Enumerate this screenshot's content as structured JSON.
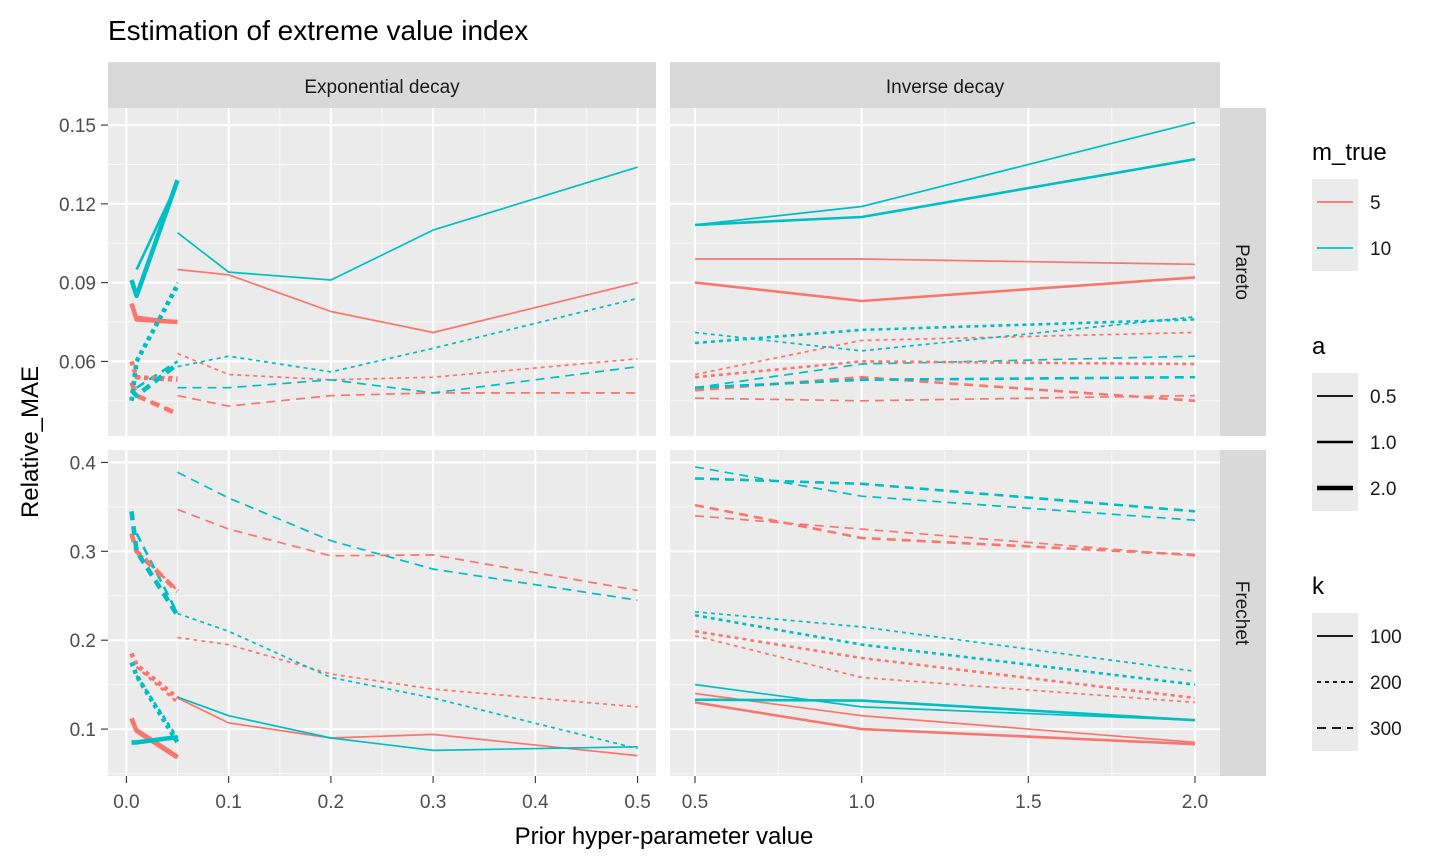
{
  "chart_data": {
    "type": "line",
    "title": "Estimation of extreme value index",
    "xlabel": "Prior hyper-parameter value",
    "ylabel": "Relative_MAE",
    "colors": {
      "5": "#F8766D",
      "10": "#00BFC4"
    },
    "columns": [
      "Exponential decay",
      "Inverse decay"
    ],
    "rows": [
      "Pareto",
      "Frechet"
    ],
    "x_axes": {
      "Exponential decay": {
        "xlim": [
          -0.018,
          0.518
        ],
        "ticks": [
          0.0,
          0.1,
          0.2,
          0.3,
          0.4,
          0.5
        ],
        "tick_labels": [
          "0.0",
          "0.1",
          "0.2",
          "0.3",
          "0.4",
          "0.5"
        ]
      },
      "Inverse decay": {
        "xlim": [
          0.425,
          2.075
        ],
        "ticks": [
          0.5,
          1.0,
          1.5,
          2.0
        ],
        "tick_labels": [
          "0.5",
          "1.0",
          "1.5",
          "2.0"
        ]
      }
    },
    "y_axes": {
      "Pareto": {
        "ylim": [
          0.0316,
          0.1565
        ],
        "ticks": [
          0.06,
          0.09,
          0.12,
          0.15
        ],
        "tick_labels": [
          "0.06",
          "0.09",
          "0.12",
          "0.15"
        ]
      },
      "Frechet": {
        "ylim": [
          0.0472,
          0.414
        ],
        "ticks": [
          0.1,
          0.2,
          0.3,
          0.4
        ],
        "tick_labels": [
          "0.1",
          "0.2",
          "0.3",
          "0.4"
        ]
      }
    },
    "x_values": {
      "Exponential decay": {
        "0.5": [
          0.05,
          0.1,
          0.2,
          0.3,
          0.5
        ],
        "1.0": [
          0.01,
          0.05
        ],
        "2.0": [
          0.005,
          0.01,
          0.05
        ]
      },
      "Inverse decay": {
        "0.5": [
          0.5,
          1.0,
          2.0
        ],
        "1.0": [
          0.5,
          1.0,
          2.0
        ],
        "2.0": [
          0.5,
          1.0,
          2.0
        ]
      }
    },
    "legends": {
      "m_true": {
        "title": "m_true",
        "entries": [
          "5",
          "10"
        ]
      },
      "a": {
        "title": "a",
        "entries": [
          "0.5",
          "1.0",
          "2.0"
        ]
      },
      "k": {
        "title": "k",
        "entries": [
          "100",
          "200",
          "300"
        ]
      }
    },
    "series": [
      {
        "panel": "Exponential decay|Pareto",
        "m_true": "5",
        "a": "0.5",
        "k": "100",
        "values": [
          0.095,
          0.093,
          0.079,
          0.071,
          0.09
        ]
      },
      {
        "panel": "Exponential decay|Pareto",
        "m_true": "5",
        "a": "0.5",
        "k": "200",
        "values": [
          0.063,
          0.055,
          0.053,
          0.054,
          0.061
        ]
      },
      {
        "panel": "Exponential decay|Pareto",
        "m_true": "5",
        "a": "0.5",
        "k": "300",
        "values": [
          0.047,
          0.043,
          0.047,
          0.048,
          0.048
        ]
      },
      {
        "panel": "Exponential decay|Pareto",
        "m_true": "10",
        "a": "0.5",
        "k": "100",
        "values": [
          0.109,
          0.094,
          0.091,
          0.11,
          0.134
        ]
      },
      {
        "panel": "Exponential decay|Pareto",
        "m_true": "10",
        "a": "0.5",
        "k": "200",
        "values": [
          0.058,
          0.062,
          0.056,
          0.065,
          0.084
        ]
      },
      {
        "panel": "Exponential decay|Pareto",
        "m_true": "10",
        "a": "0.5",
        "k": "300",
        "values": [
          0.05,
          0.05,
          0.053,
          0.048,
          0.058
        ]
      },
      {
        "panel": "Exponential decay|Pareto",
        "m_true": "5",
        "a": "1.0",
        "k": "100",
        "values": [
          0.077,
          0.075
        ]
      },
      {
        "panel": "Exponential decay|Pareto",
        "m_true": "5",
        "a": "1.0",
        "k": "200",
        "values": [
          0.054,
          0.054
        ]
      },
      {
        "panel": "Exponential decay|Pareto",
        "m_true": "5",
        "a": "1.0",
        "k": "300",
        "values": [
          0.047,
          0.04
        ]
      },
      {
        "panel": "Exponential decay|Pareto",
        "m_true": "10",
        "a": "1.0",
        "k": "100",
        "values": [
          0.095,
          0.128
        ]
      },
      {
        "panel": "Exponential decay|Pareto",
        "m_true": "10",
        "a": "1.0",
        "k": "200",
        "values": [
          0.06,
          0.09
        ]
      },
      {
        "panel": "Exponential decay|Pareto",
        "m_true": "10",
        "a": "1.0",
        "k": "300",
        "values": [
          0.05,
          0.06
        ]
      },
      {
        "panel": "Exponential decay|Pareto",
        "m_true": "5",
        "a": "2.0",
        "k": "100",
        "values": [
          0.082,
          0.076,
          0.075
        ]
      },
      {
        "panel": "Exponential decay|Pareto",
        "m_true": "5",
        "a": "2.0",
        "k": "200",
        "values": [
          0.06,
          0.054,
          0.053
        ]
      },
      {
        "panel": "Exponential decay|Pareto",
        "m_true": "5",
        "a": "2.0",
        "k": "300",
        "values": [
          0.052,
          0.047,
          0.04
        ]
      },
      {
        "panel": "Exponential decay|Pareto",
        "m_true": "10",
        "a": "2.0",
        "k": "100",
        "values": [
          0.091,
          0.085,
          0.129
        ]
      },
      {
        "panel": "Exponential decay|Pareto",
        "m_true": "10",
        "a": "2.0",
        "k": "200",
        "values": [
          0.045,
          0.06,
          0.089
        ]
      },
      {
        "panel": "Exponential decay|Pareto",
        "m_true": "10",
        "a": "2.0",
        "k": "300",
        "values": [
          0.049,
          0.047,
          0.059
        ]
      },
      {
        "panel": "Exponential decay|Frechet",
        "m_true": "5",
        "a": "0.5",
        "k": "100",
        "values": [
          0.135,
          0.107,
          0.09,
          0.094,
          0.07
        ]
      },
      {
        "panel": "Exponential decay|Frechet",
        "m_true": "5",
        "a": "0.5",
        "k": "200",
        "values": [
          0.203,
          0.195,
          0.162,
          0.145,
          0.125
        ]
      },
      {
        "panel": "Exponential decay|Frechet",
        "m_true": "5",
        "a": "0.5",
        "k": "300",
        "values": [
          0.347,
          0.325,
          0.295,
          0.296,
          0.256
        ]
      },
      {
        "panel": "Exponential decay|Frechet",
        "m_true": "10",
        "a": "0.5",
        "k": "100",
        "values": [
          0.136,
          0.115,
          0.09,
          0.076,
          0.08
        ]
      },
      {
        "panel": "Exponential decay|Frechet",
        "m_true": "10",
        "a": "0.5",
        "k": "200",
        "values": [
          0.23,
          0.21,
          0.158,
          0.135,
          0.078
        ]
      },
      {
        "panel": "Exponential decay|Frechet",
        "m_true": "10",
        "a": "0.5",
        "k": "300",
        "values": [
          0.389,
          0.36,
          0.312,
          0.28,
          0.245
        ]
      },
      {
        "panel": "Exponential decay|Frechet",
        "m_true": "5",
        "a": "1.0",
        "k": "100",
        "values": [
          0.1,
          0.07
        ]
      },
      {
        "panel": "Exponential decay|Frechet",
        "m_true": "5",
        "a": "1.0",
        "k": "200",
        "values": [
          0.17,
          0.13
        ]
      },
      {
        "panel": "Exponential decay|Frechet",
        "m_true": "5",
        "a": "1.0",
        "k": "300",
        "values": [
          0.3,
          0.256
        ]
      },
      {
        "panel": "Exponential decay|Frechet",
        "m_true": "10",
        "a": "1.0",
        "k": "100",
        "values": [
          0.085,
          0.09
        ]
      },
      {
        "panel": "Exponential decay|Frechet",
        "m_true": "10",
        "a": "1.0",
        "k": "200",
        "values": [
          0.16,
          0.09
        ]
      },
      {
        "panel": "Exponential decay|Frechet",
        "m_true": "10",
        "a": "1.0",
        "k": "300",
        "values": [
          0.32,
          0.23
        ]
      },
      {
        "panel": "Exponential decay|Frechet",
        "m_true": "5",
        "a": "2.0",
        "k": "100",
        "values": [
          0.112,
          0.098,
          0.068
        ]
      },
      {
        "panel": "Exponential decay|Frechet",
        "m_true": "5",
        "a": "2.0",
        "k": "200",
        "values": [
          0.185,
          0.172,
          0.135
        ]
      },
      {
        "panel": "Exponential decay|Frechet",
        "m_true": "5",
        "a": "2.0",
        "k": "300",
        "values": [
          0.32,
          0.3,
          0.255
        ]
      },
      {
        "panel": "Exponential decay|Frechet",
        "m_true": "10",
        "a": "2.0",
        "k": "100",
        "values": [
          0.085,
          0.085,
          0.091
        ]
      },
      {
        "panel": "Exponential decay|Frechet",
        "m_true": "10",
        "a": "2.0",
        "k": "200",
        "values": [
          0.175,
          0.16,
          0.085
        ]
      },
      {
        "panel": "Exponential decay|Frechet",
        "m_true": "10",
        "a": "2.0",
        "k": "300",
        "values": [
          0.345,
          0.3,
          0.228
        ]
      },
      {
        "panel": "Inverse decay|Pareto",
        "m_true": "5",
        "a": "0.5",
        "k": "100",
        "values": [
          0.099,
          0.099,
          0.097
        ]
      },
      {
        "panel": "Inverse decay|Pareto",
        "m_true": "5",
        "a": "0.5",
        "k": "200",
        "values": [
          0.055,
          0.068,
          0.071
        ]
      },
      {
        "panel": "Inverse decay|Pareto",
        "m_true": "5",
        "a": "0.5",
        "k": "300",
        "values": [
          0.046,
          0.045,
          0.047
        ]
      },
      {
        "panel": "Inverse decay|Pareto",
        "m_true": "10",
        "a": "0.5",
        "k": "100",
        "values": [
          0.112,
          0.119,
          0.151
        ]
      },
      {
        "panel": "Inverse decay|Pareto",
        "m_true": "10",
        "a": "0.5",
        "k": "200",
        "values": [
          0.071,
          0.064,
          0.077
        ]
      },
      {
        "panel": "Inverse decay|Pareto",
        "m_true": "10",
        "a": "0.5",
        "k": "300",
        "values": [
          0.05,
          0.059,
          0.062
        ]
      },
      {
        "panel": "Inverse decay|Pareto",
        "m_true": "5",
        "a": "1.0",
        "k": "100",
        "values": [
          0.09,
          0.083,
          0.092
        ]
      },
      {
        "panel": "Inverse decay|Pareto",
        "m_true": "5",
        "a": "1.0",
        "k": "200",
        "values": [
          0.054,
          0.06,
          0.059
        ]
      },
      {
        "panel": "Inverse decay|Pareto",
        "m_true": "5",
        "a": "1.0",
        "k": "300",
        "values": [
          0.049,
          0.054,
          0.045
        ]
      },
      {
        "panel": "Inverse decay|Pareto",
        "m_true": "10",
        "a": "1.0",
        "k": "100",
        "values": [
          0.112,
          0.115,
          0.137
        ]
      },
      {
        "panel": "Inverse decay|Pareto",
        "m_true": "10",
        "a": "1.0",
        "k": "200",
        "values": [
          0.067,
          0.072,
          0.076
        ]
      },
      {
        "panel": "Inverse decay|Pareto",
        "m_true": "10",
        "a": "1.0",
        "k": "300",
        "values": [
          0.05,
          0.053,
          0.054
        ]
      }
    ],
    "series_inverse_frechet": [
      {
        "panel": "Inverse decay|Frechet",
        "m_true": "5",
        "a": "0.5",
        "k": "100",
        "values": [
          0.14,
          0.115,
          0.085
        ]
      },
      {
        "panel": "Inverse decay|Frechet",
        "m_true": "5",
        "a": "0.5",
        "k": "200",
        "values": [
          0.205,
          0.158,
          0.13
        ]
      },
      {
        "panel": "Inverse decay|Frechet",
        "m_true": "5",
        "a": "0.5",
        "k": "300",
        "values": [
          0.34,
          0.325,
          0.295
        ]
      },
      {
        "panel": "Inverse decay|Frechet",
        "m_true": "10",
        "a": "0.5",
        "k": "100",
        "values": [
          0.15,
          0.125,
          0.11
        ]
      },
      {
        "panel": "Inverse decay|Frechet",
        "m_true": "10",
        "a": "0.5",
        "k": "200",
        "values": [
          0.232,
          0.215,
          0.165
        ]
      },
      {
        "panel": "Inverse decay|Frechet",
        "m_true": "10",
        "a": "0.5",
        "k": "300",
        "values": [
          0.395,
          0.362,
          0.335
        ]
      },
      {
        "panel": "Inverse decay|Frechet",
        "m_true": "5",
        "a": "1.0",
        "k": "100",
        "values": [
          0.13,
          0.1,
          0.083
        ]
      },
      {
        "panel": "Inverse decay|Frechet",
        "m_true": "5",
        "a": "1.0",
        "k": "200",
        "values": [
          0.21,
          0.18,
          0.135
        ]
      },
      {
        "panel": "Inverse decay|Frechet",
        "m_true": "5",
        "a": "1.0",
        "k": "300",
        "values": [
          0.352,
          0.315,
          0.296
        ]
      },
      {
        "panel": "Inverse decay|Frechet",
        "m_true": "10",
        "a": "1.0",
        "k": "100",
        "values": [
          0.133,
          0.132,
          0.11
        ]
      },
      {
        "panel": "Inverse decay|Frechet",
        "m_true": "10",
        "a": "1.0",
        "k": "200",
        "values": [
          0.228,
          0.195,
          0.15
        ]
      },
      {
        "panel": "Inverse decay|Frechet",
        "m_true": "10",
        "a": "1.0",
        "k": "300",
        "values": [
          0.382,
          0.376,
          0.345
        ]
      }
    ]
  }
}
